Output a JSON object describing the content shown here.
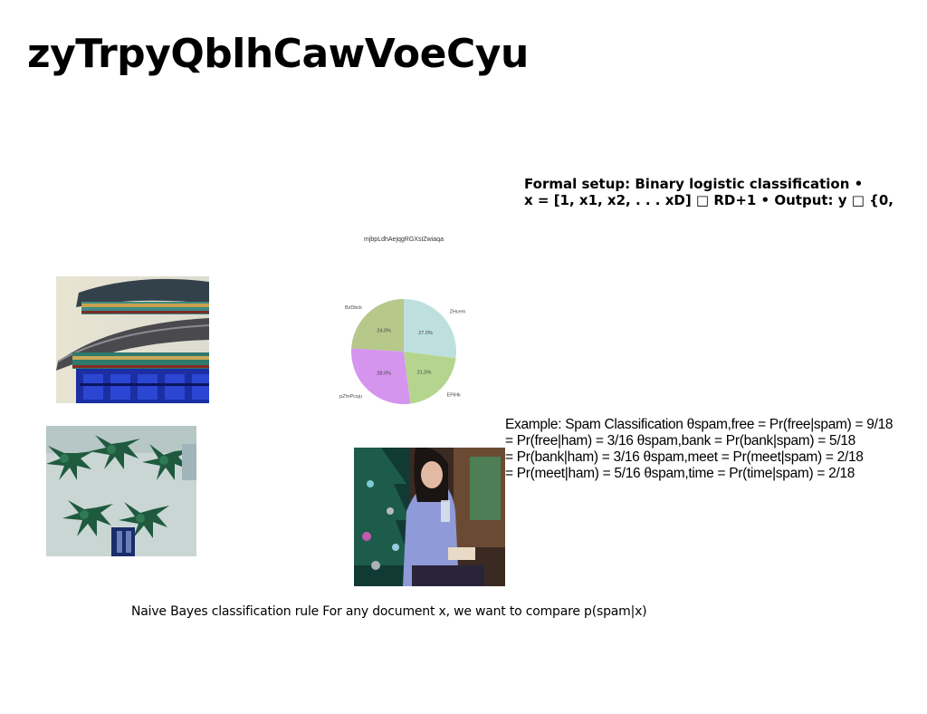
{
  "slide": {
    "title": "zyTrpyQblhCawVoeCyu",
    "formal_lines": [
      "Formal setup: Binary logistic classification •",
      "x = [1, x1, x2, . . . xD] □ RD+1 • Output: y □ {0,"
    ],
    "example_lines": [
      "Example: Spam Classification θspam,free = Pr(free|spam) = 9/18",
      "= Pr(free|ham) = 3/16 θspam,bank = Pr(bank|spam) = 5/18",
      "= Pr(bank|ham) = 3/16 θspam,meet = Pr(meet|spam) = 2/18",
      "= Pr(meet|ham) = 5/16 θspam,time = Pr(time|spam) = 2/18"
    ],
    "naive_text": "Naive Bayes classification rule For any document x, we want to compare p(spam|x)"
  },
  "chart_data": {
    "type": "pie",
    "title": "mjbpLdhAejqgRGXsIZwiaqa",
    "labels": [
      "ZHcem",
      "EPiHk",
      "pZhrPcxju",
      "BzDbck"
    ],
    "values": [
      27.0,
      21.0,
      28.0,
      24.0
    ],
    "value_labels": [
      "27.0%",
      "21.0%",
      "28.0%",
      "24.0%"
    ],
    "colors": [
      "#bde0df",
      "#b5d58f",
      "#d594ee",
      "#b6c88a"
    ],
    "start_angle": 90,
    "direction": "clockwise"
  }
}
